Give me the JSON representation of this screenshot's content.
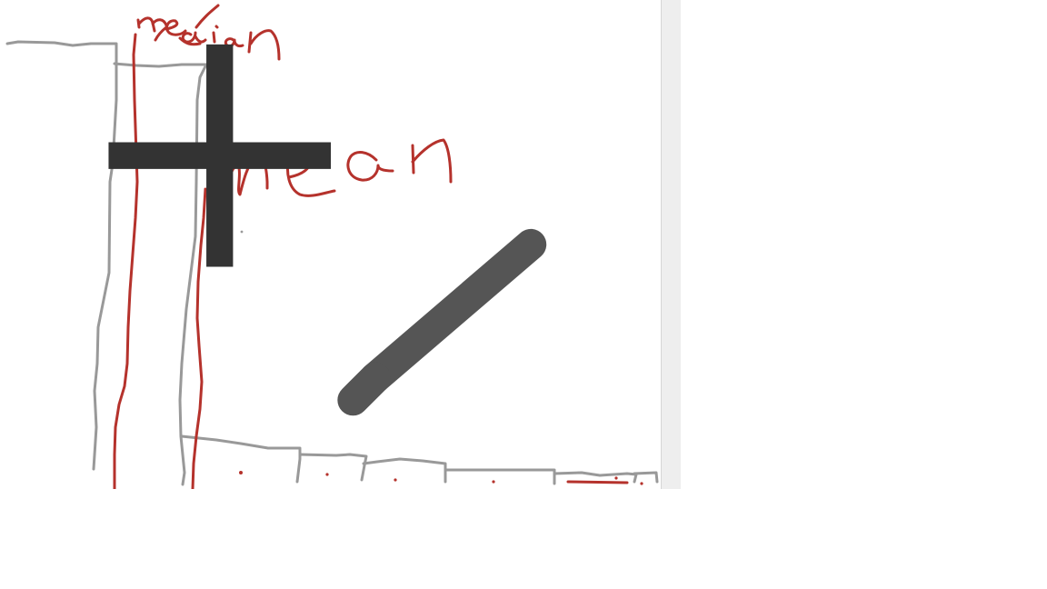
{
  "colors": {
    "ink_gray": "#999999",
    "ink_red": "#b5322c",
    "canvas": "#ffffff",
    "scrollbar": "#eeeeee"
  },
  "annotations": {
    "median": "median",
    "mean": "mean"
  },
  "tool": {
    "cursor": "pen-crosshair-cursor"
  }
}
